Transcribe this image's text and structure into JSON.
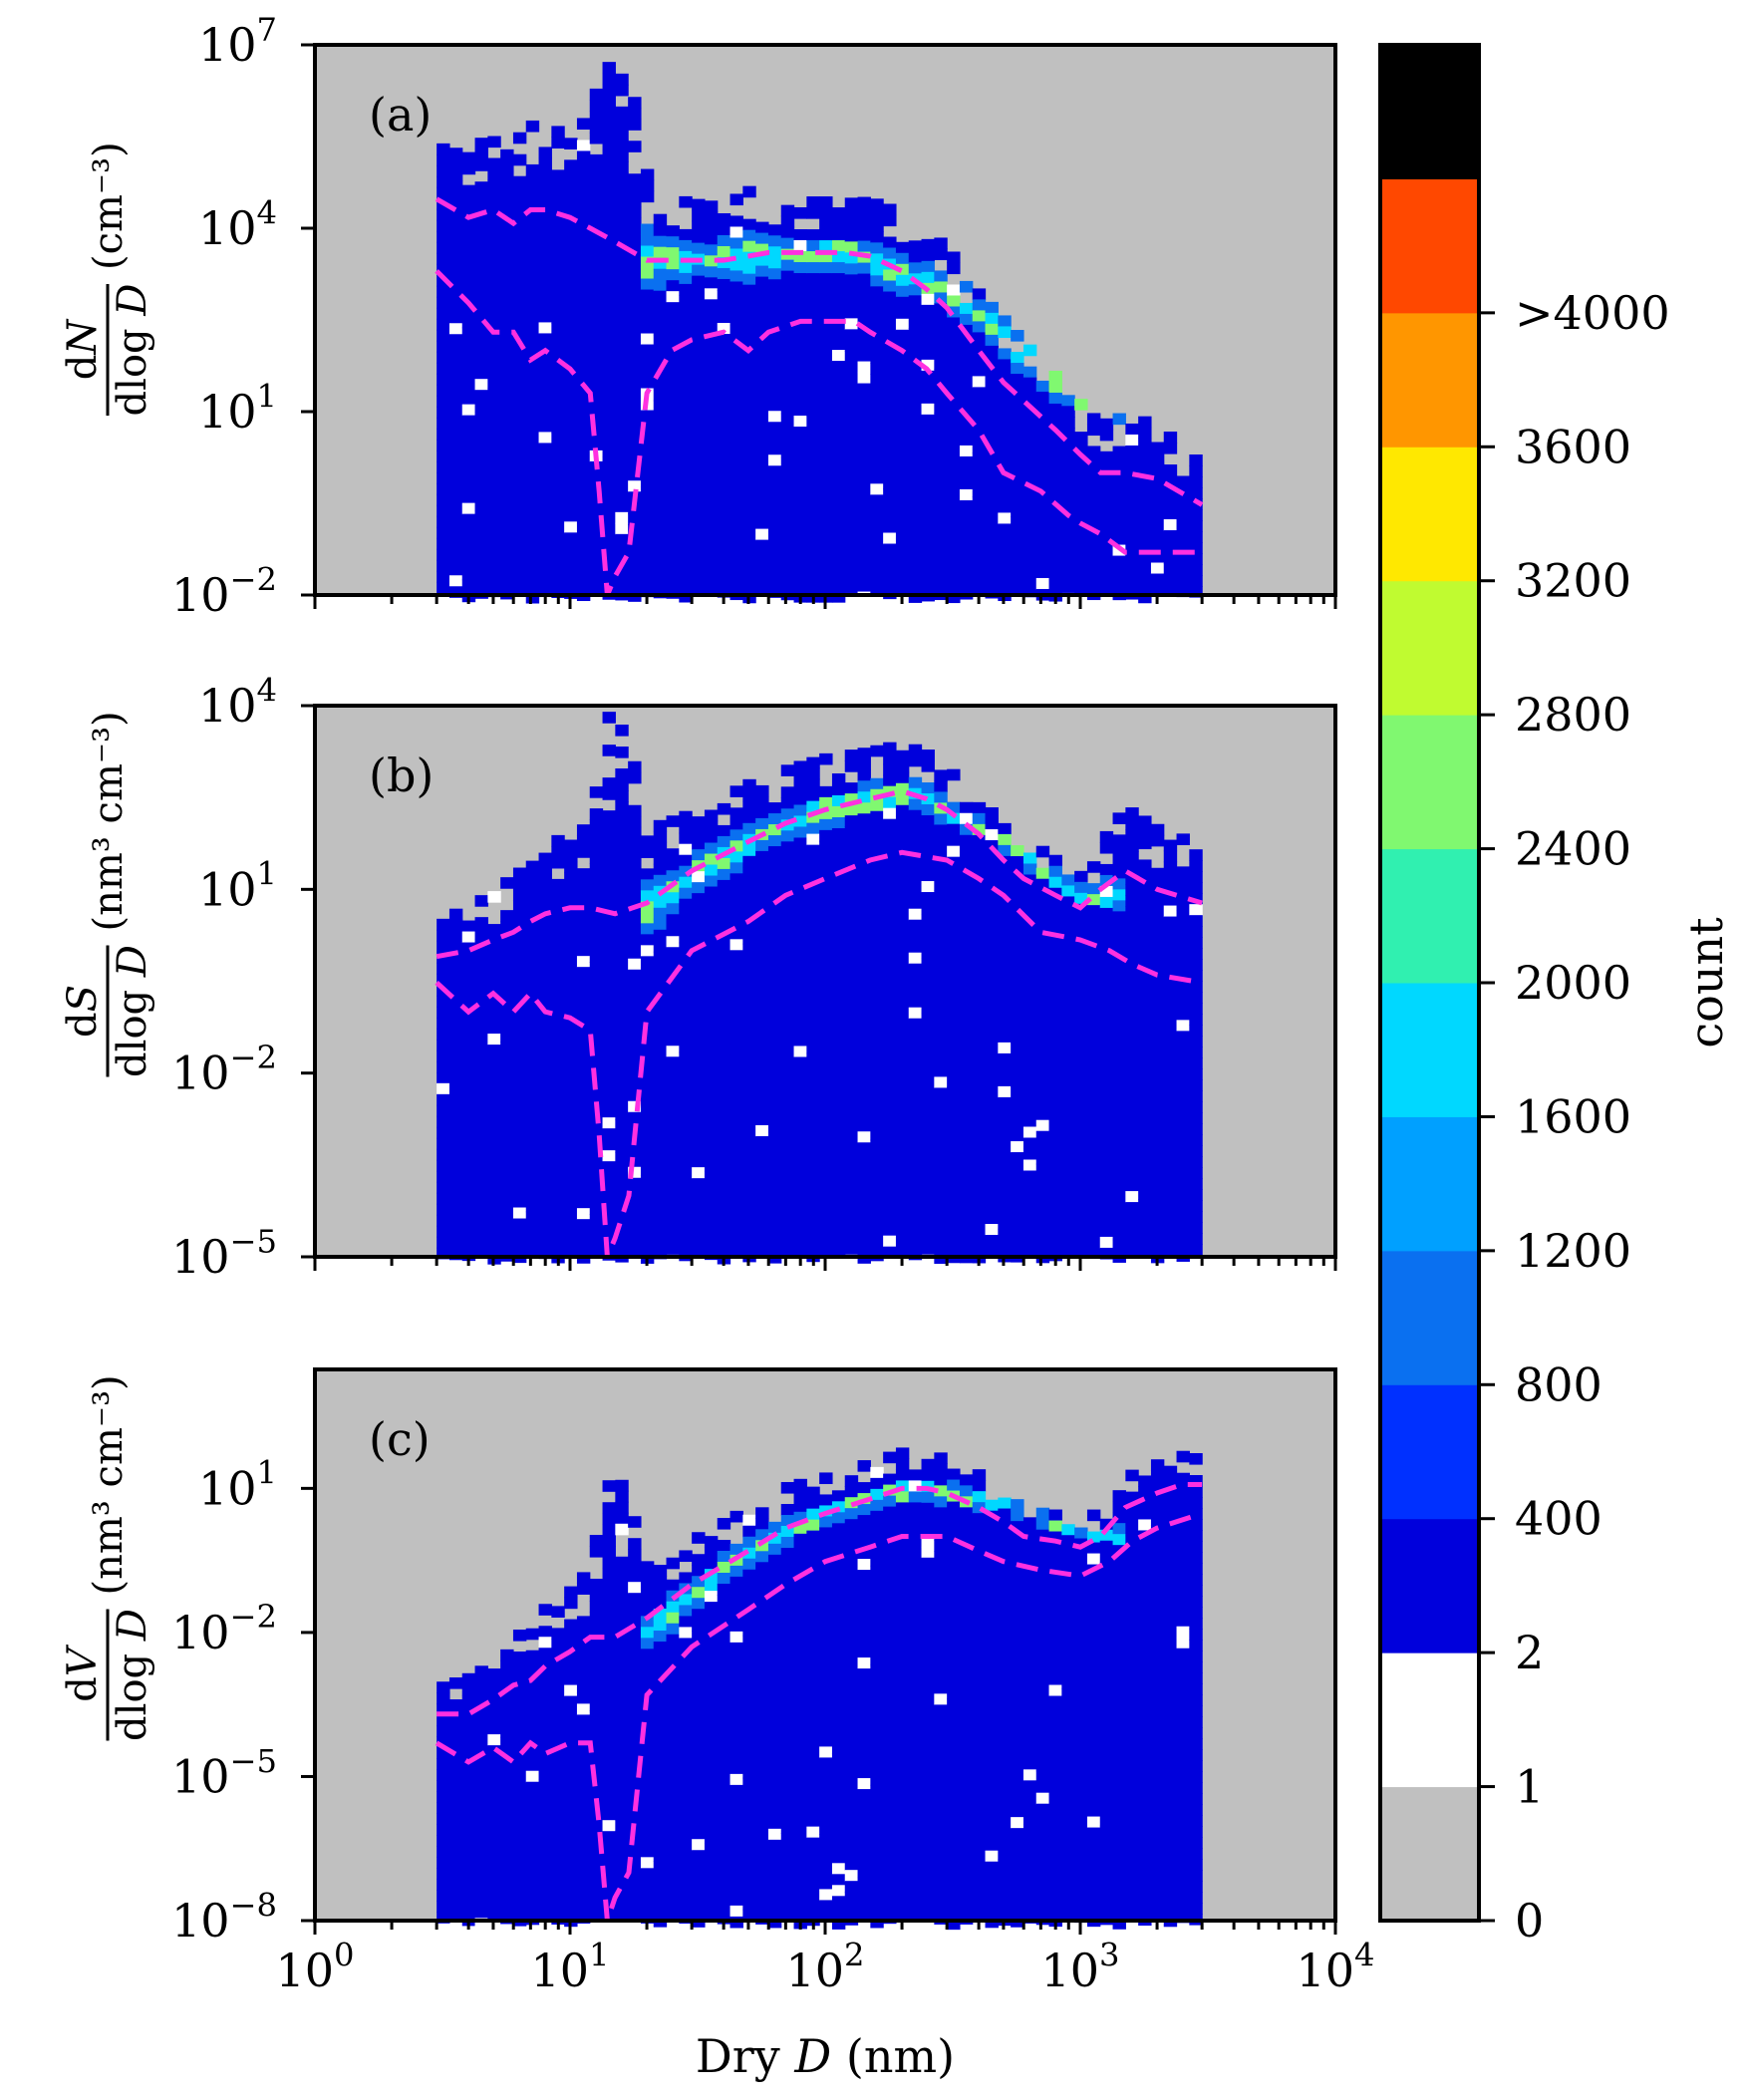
{
  "chart_data": {
    "type": "heatmap",
    "xlabel": "Dry D (nm)",
    "x_scale": "log",
    "xlim": [
      1,
      10000
    ],
    "x_ticks": [
      {
        "value": 1,
        "base": "10",
        "exp": "0"
      },
      {
        "value": 10,
        "base": "10",
        "exp": "1"
      },
      {
        "value": 100,
        "base": "10",
        "exp": "2"
      },
      {
        "value": 1000,
        "base": "10",
        "exp": "3"
      },
      {
        "value": 10000,
        "base": "10",
        "exp": "4"
      }
    ],
    "panels": [
      {
        "label": "(a)",
        "ylabel_var": "N",
        "ylabel_units": "(cm⁻³)",
        "y_scale": "log",
        "ylim": [
          0.01,
          10000000
        ],
        "y_ticks": [
          {
            "value": 0.01,
            "base": "10",
            "exp": "−2"
          },
          {
            "value": 10,
            "base": "10",
            "exp": "1"
          },
          {
            "value": 10000,
            "base": "10",
            "exp": "4"
          },
          {
            "value": 10000000,
            "base": "10",
            "exp": "7"
          }
        ],
        "mode": {
          "x": [
            30,
            120,
            300,
            1000
          ],
          "y": [
            3000,
            4000,
            1000,
            15
          ]
        },
        "lower_percentile": {
          "x": [
            3,
            4,
            5,
            6,
            7,
            8,
            10,
            12,
            13,
            14,
            15,
            17,
            20,
            25,
            30,
            40,
            50,
            60,
            80,
            100,
            130,
            150,
            200,
            250,
            300,
            400,
            500,
            700,
            900,
            1000,
            1200,
            1500,
            2000,
            3000
          ],
          "y": [
            2000,
            600,
            200,
            200,
            70,
            100,
            50,
            20,
            0.5,
            0.01,
            0.02,
            0.05,
            20,
            100,
            150,
            200,
            100,
            200,
            300,
            300,
            300,
            200,
            100,
            50,
            20,
            5,
            1,
            0.5,
            0.2,
            0.15,
            0.1,
            0.05,
            0.05,
            0.05
          ]
        },
        "upper_percentile": {
          "x": [
            3,
            4,
            5,
            6,
            7,
            8,
            10,
            12,
            15,
            20,
            30,
            40,
            50,
            60,
            80,
            100,
            120,
            150,
            200,
            250,
            300,
            400,
            500,
            600,
            800,
            1000,
            1200,
            1500,
            2000,
            3000
          ],
          "y": [
            30000,
            15000,
            20000,
            12000,
            20000,
            20000,
            15000,
            10000,
            6000,
            3000,
            3000,
            3000,
            3500,
            4000,
            4000,
            4000,
            4000,
            3500,
            2000,
            1000,
            500,
            100,
            30,
            15,
            5,
            2,
            1,
            1,
            0.8,
            0.3
          ]
        }
      },
      {
        "label": "(b)",
        "ylabel_var": "S",
        "ylabel_units": "(nm³ cm⁻³)",
        "y_scale": "log",
        "ylim": [
          1e-05,
          10000
        ],
        "y_ticks": [
          {
            "value": 1e-05,
            "base": "10",
            "exp": "−5"
          },
          {
            "value": 0.01,
            "base": "10",
            "exp": "−2"
          },
          {
            "value": 10,
            "base": "10",
            "exp": "1"
          },
          {
            "value": 10000,
            "base": "10",
            "exp": "4"
          }
        ],
        "mode": {
          "x": [
            20,
            50,
            100,
            220,
            500,
            1000
          ],
          "y": [
            5,
            60,
            200,
            400,
            60,
            8
          ]
        },
        "lower_percentile": {
          "x": [
            3,
            4,
            5,
            6,
            7,
            8,
            10,
            12,
            13,
            14,
            15,
            17,
            20,
            30,
            50,
            70,
            100,
            150,
            200,
            300,
            400,
            500,
            700,
            1000,
            1300,
            1600,
            2000,
            3000
          ],
          "y": [
            0.3,
            0.1,
            0.2,
            0.1,
            0.2,
            0.1,
            0.08,
            0.05,
            0.001,
            1e-05,
            2e-05,
            0.0001,
            0.1,
            1,
            3,
            8,
            15,
            30,
            40,
            30,
            15,
            8,
            2,
            1.5,
            1,
            0.6,
            0.4,
            0.3
          ]
        },
        "upper_percentile": {
          "x": [
            3,
            4,
            5,
            6,
            7,
            8,
            10,
            12,
            15,
            20,
            30,
            50,
            70,
            100,
            150,
            200,
            250,
            300,
            400,
            500,
            600,
            800,
            1000,
            1200,
            1500,
            2000,
            3000
          ],
          "y": [
            0.8,
            1,
            1.5,
            2,
            3,
            4,
            5,
            5,
            4,
            6,
            20,
            60,
            120,
            200,
            300,
            400,
            300,
            200,
            80,
            30,
            15,
            8,
            5,
            10,
            20,
            10,
            6
          ]
        }
      },
      {
        "label": "(c)",
        "ylabel_var": "V",
        "ylabel_units": "(nm³ cm⁻³)",
        "y_scale": "log",
        "ylim": [
          1e-08,
          3000
        ],
        "y_ticks": [
          {
            "value": 1e-08,
            "base": "10",
            "exp": "−8"
          },
          {
            "value": 1e-05,
            "base": "10",
            "exp": "−5"
          },
          {
            "value": 0.01,
            "base": "10",
            "exp": "−2"
          },
          {
            "value": 10,
            "base": "10",
            "exp": "1"
          }
        ],
        "mode": {
          "x": [
            20,
            50,
            100,
            220,
            500,
            1000
          ],
          "y": [
            0.01,
            0.5,
            3,
            10,
            5,
            1
          ]
        },
        "lower_percentile": {
          "x": [
            3,
            4,
            5,
            6,
            7,
            8,
            10,
            12,
            13,
            14,
            15,
            17,
            20,
            30,
            50,
            70,
            100,
            150,
            200,
            300,
            400,
            500,
            700,
            1000,
            1300,
            1600,
            2000,
            3000
          ],
          "y": [
            5e-05,
            2e-05,
            4e-05,
            2e-05,
            5e-05,
            3e-05,
            5e-05,
            5e-05,
            1e-06,
            1e-08,
            3e-08,
            1e-07,
            0.0005,
            0.005,
            0.03,
            0.1,
            0.3,
            0.6,
            1,
            1,
            0.5,
            0.3,
            0.2,
            0.15,
            0.3,
            0.8,
            1.5,
            3
          ]
        },
        "upper_percentile": {
          "x": [
            3,
            4,
            5,
            6,
            7,
            8,
            10,
            12,
            15,
            20,
            30,
            50,
            70,
            100,
            150,
            200,
            250,
            300,
            400,
            500,
            600,
            800,
            1000,
            1200,
            1500,
            2000,
            2500,
            3000
          ],
          "y": [
            0.0002,
            0.0002,
            0.0004,
            0.0008,
            0.001,
            0.002,
            0.004,
            0.008,
            0.008,
            0.02,
            0.1,
            0.5,
            1.5,
            3,
            6,
            10,
            10,
            8,
            4,
            2,
            1,
            0.8,
            0.6,
            1,
            4,
            8,
            12,
            12
          ]
        }
      }
    ],
    "colorbar": {
      "label": "count",
      "ticks": [
        "0",
        "1",
        "2",
        "400",
        "800",
        "1200",
        "1600",
        "2000",
        "2400",
        "2800",
        "3200",
        "3600",
        ">4000"
      ],
      "colors": [
        "#c0c0c0",
        "#ffffff",
        "#0000dc",
        "#0030ff",
        "#0a70f0",
        "#00a0ff",
        "#00d8ff",
        "#30f0b0",
        "#80f870",
        "#c0fb30",
        "#ffe800",
        "#ff9600",
        "#ff4800",
        "#000000"
      ]
    },
    "heatmap_colors": {
      "background": "#c0c0c0",
      "low": "#0000dc",
      "mid": "#0a70f0",
      "cyan": "#00d8ff",
      "green": "#80f870",
      "yellow": "#c0fb30",
      "outline_white": "#ffffff",
      "percentile_line": "#ff30e0"
    }
  }
}
